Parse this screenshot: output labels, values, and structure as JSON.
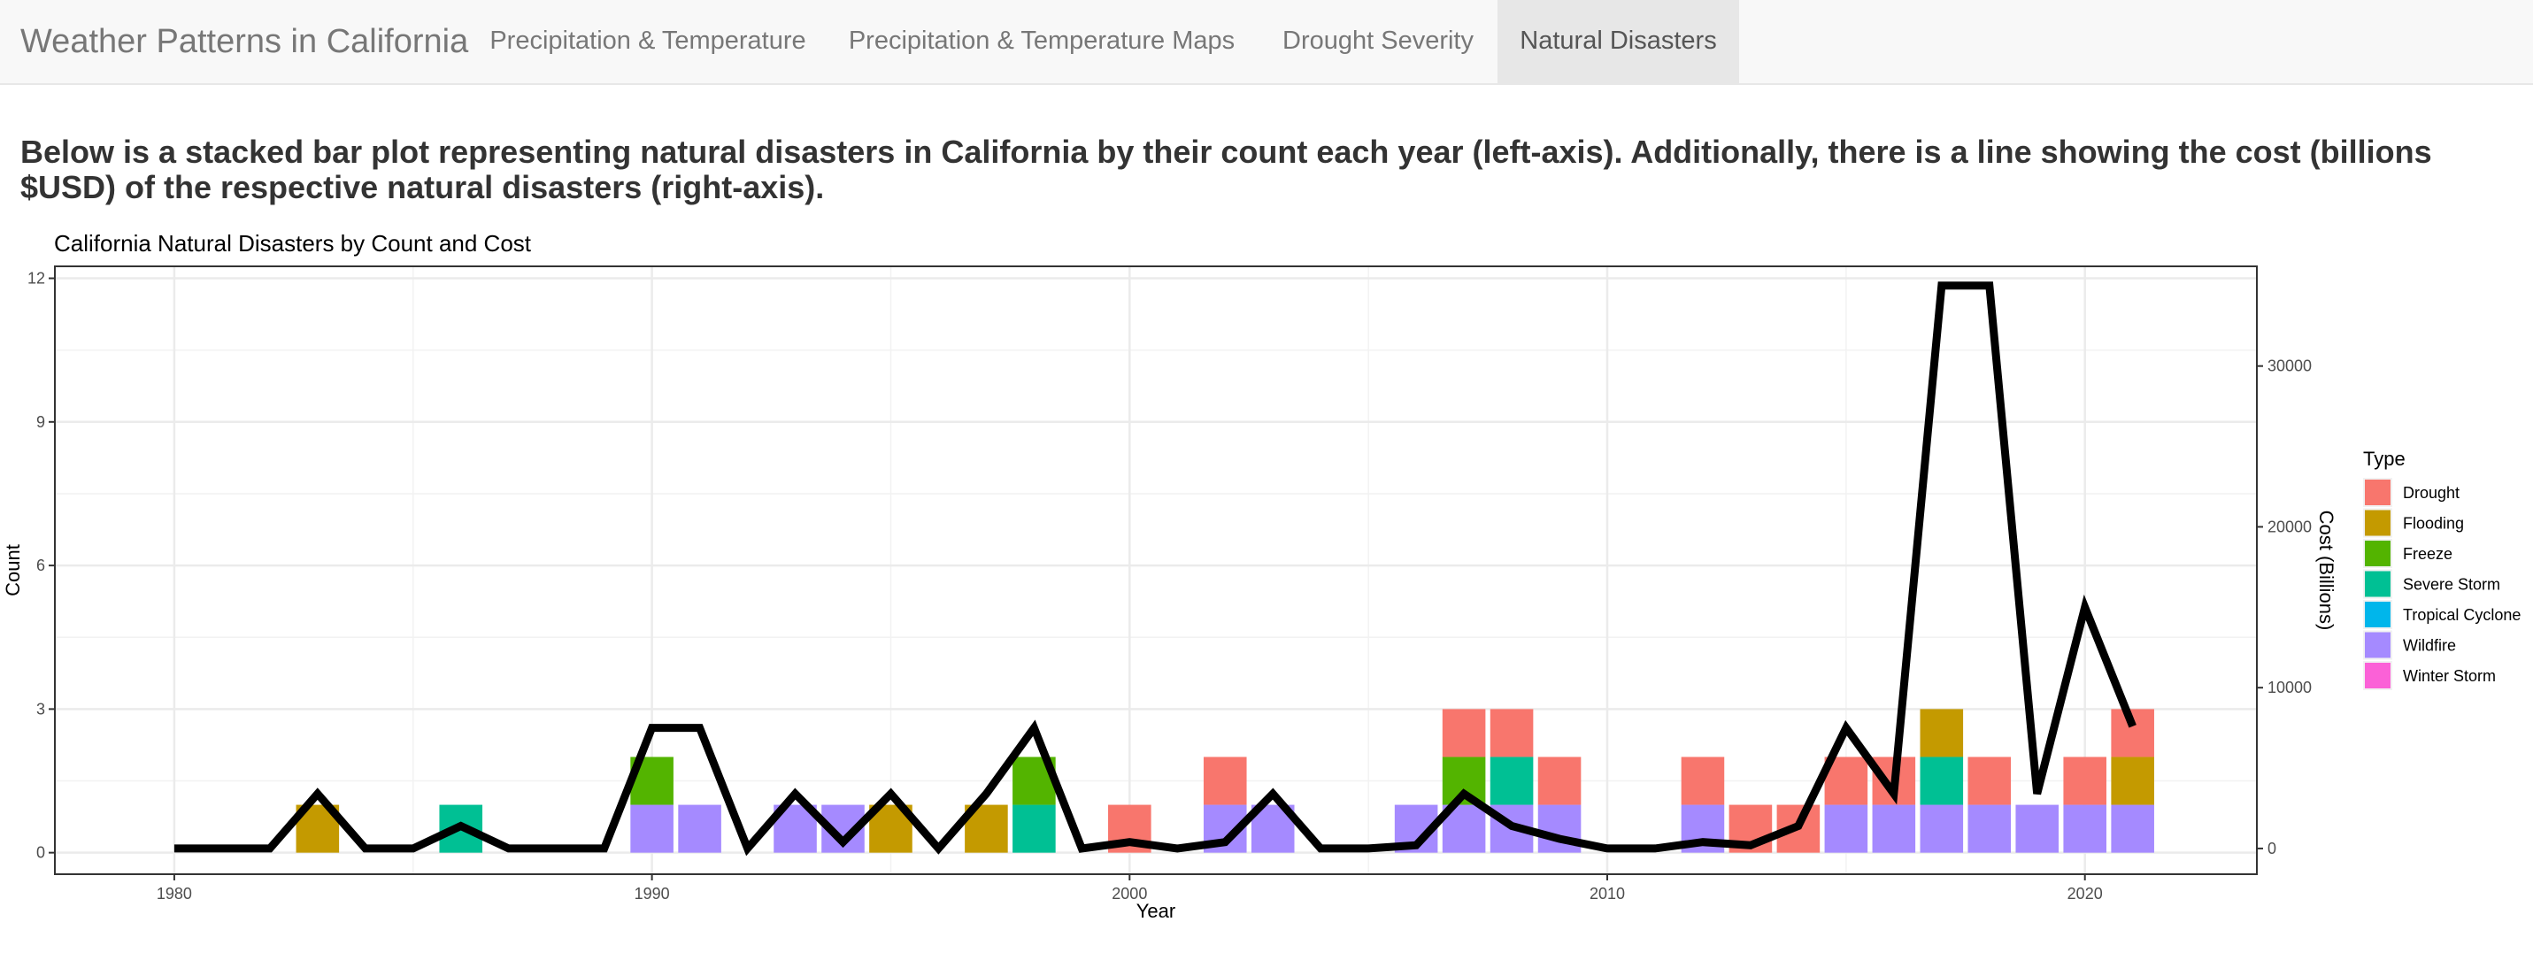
{
  "nav": {
    "brand": "Weather Patterns in California",
    "tabs": [
      {
        "label": "Precipitation & Temperature",
        "active": false
      },
      {
        "label": "Precipitation & Temperature Maps",
        "active": false
      },
      {
        "label": "Drought Severity",
        "active": false
      },
      {
        "label": "Natural Disasters",
        "active": true
      }
    ]
  },
  "intro_text": "Below is a stacked bar plot representing natural disasters in California by their count each year (left-axis). Additionally, there is a line showing the cost (billions $USD) of the respective natural disasters (right-axis).",
  "chart_data": {
    "type": "bar",
    "title": "California Natural Disasters by Count and Cost",
    "xlabel": "Year",
    "ylabel": "Count",
    "y2label": "Cost (Billions)",
    "xlim": [
      1977.5,
      2023.6
    ],
    "ylim": [
      -0.45,
      12.25
    ],
    "y2lim": [
      -1600,
      36200
    ],
    "xticks": [
      1980,
      1990,
      2000,
      2010,
      2020
    ],
    "yticks": [
      0,
      3,
      6,
      9,
      12
    ],
    "y2ticks": [
      0,
      10000,
      20000,
      30000
    ],
    "grid": true,
    "legend": {
      "title": "Type",
      "position": "right"
    },
    "series": [
      {
        "name": "Drought",
        "color": "#F8766D"
      },
      {
        "name": "Flooding",
        "color": "#C49A00"
      },
      {
        "name": "Freeze",
        "color": "#53B400"
      },
      {
        "name": "Severe Storm",
        "color": "#00C094"
      },
      {
        "name": "Tropical Cyclone",
        "color": "#00B6EB"
      },
      {
        "name": "Wildfire",
        "color": "#A58AFF"
      },
      {
        "name": "Winter Storm",
        "color": "#FB61D7"
      }
    ],
    "bars": [
      {
        "year": 1983,
        "stack": [
          "Flooding"
        ]
      },
      {
        "year": 1986,
        "stack": [
          "Severe Storm"
        ]
      },
      {
        "year": 1990,
        "stack": [
          "Wildfire",
          "Freeze"
        ]
      },
      {
        "year": 1991,
        "stack": [
          "Wildfire"
        ]
      },
      {
        "year": 1993,
        "stack": [
          "Wildfire"
        ]
      },
      {
        "year": 1994,
        "stack": [
          "Wildfire"
        ]
      },
      {
        "year": 1995,
        "stack": [
          "Flooding"
        ]
      },
      {
        "year": 1997,
        "stack": [
          "Flooding"
        ]
      },
      {
        "year": 1998,
        "stack": [
          "Severe Storm",
          "Freeze"
        ]
      },
      {
        "year": 2000,
        "stack": [
          "Drought"
        ]
      },
      {
        "year": 2002,
        "stack": [
          "Wildfire",
          "Drought"
        ]
      },
      {
        "year": 2003,
        "stack": [
          "Wildfire"
        ]
      },
      {
        "year": 2006,
        "stack": [
          "Wildfire"
        ]
      },
      {
        "year": 2007,
        "stack": [
          "Wildfire",
          "Freeze",
          "Drought"
        ]
      },
      {
        "year": 2008,
        "stack": [
          "Wildfire",
          "Severe Storm",
          "Drought"
        ]
      },
      {
        "year": 2009,
        "stack": [
          "Wildfire",
          "Drought"
        ]
      },
      {
        "year": 2012,
        "stack": [
          "Wildfire",
          "Drought"
        ]
      },
      {
        "year": 2013,
        "stack": [
          "Drought"
        ]
      },
      {
        "year": 2014,
        "stack": [
          "Drought"
        ]
      },
      {
        "year": 2015,
        "stack": [
          "Wildfire",
          "Drought"
        ]
      },
      {
        "year": 2016,
        "stack": [
          "Wildfire",
          "Drought"
        ]
      },
      {
        "year": 2017,
        "stack": [
          "Wildfire",
          "Severe Storm",
          "Flooding"
        ]
      },
      {
        "year": 2018,
        "stack": [
          "Wildfire",
          "Drought"
        ]
      },
      {
        "year": 2019,
        "stack": [
          "Wildfire"
        ]
      },
      {
        "year": 2020,
        "stack": [
          "Wildfire",
          "Drought"
        ]
      },
      {
        "year": 2021,
        "stack": [
          "Wildfire",
          "Flooding",
          "Drought"
        ]
      }
    ],
    "cost_line": {
      "years": [
        1980,
        1981,
        1982,
        1983,
        1984,
        1985,
        1986,
        1987,
        1988,
        1989,
        1990,
        1991,
        1992,
        1993,
        1994,
        1995,
        1996,
        1997,
        1998,
        1999,
        2000,
        2001,
        2002,
        2003,
        2004,
        2005,
        2006,
        2007,
        2008,
        2009,
        2010,
        2011,
        2012,
        2013,
        2014,
        2015,
        2016,
        2017,
        2018,
        2019,
        2020,
        2021
      ],
      "values": [
        0,
        0,
        0,
        3400,
        0,
        0,
        1400,
        0,
        0,
        0,
        7500,
        7500,
        0,
        3400,
        400,
        3400,
        0,
        3400,
        7500,
        0,
        400,
        0,
        400,
        3400,
        0,
        0,
        200,
        3400,
        1400,
        600,
        0,
        0,
        400,
        200,
        1400,
        7500,
        3400,
        35000,
        35000,
        3400,
        15000,
        7600
      ]
    }
  }
}
